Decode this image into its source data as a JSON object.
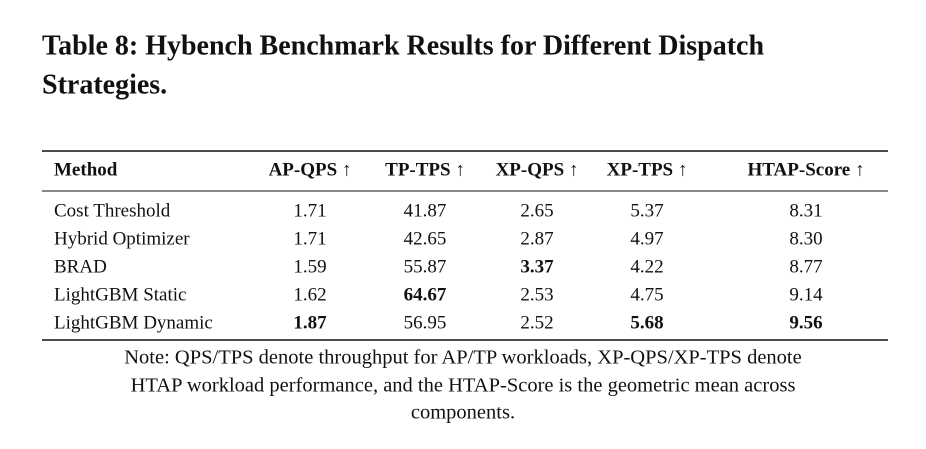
{
  "title": [
    "Table 8: Hybench Benchmark Results for Different Dispatch",
    "Strategies."
  ],
  "table": {
    "header": [
      "Method",
      "AP-QPS ↑",
      "TP-TPS ↑",
      "XP-QPS ↑",
      "XP-TPS ↑",
      "HTAP-Score ↑"
    ],
    "rows": [
      [
        "Cost Threshold",
        "1.71",
        "41.87",
        "2.65",
        "5.37",
        "8.31"
      ],
      [
        "Hybrid Optimizer",
        "1.71",
        "42.65",
        "2.87",
        "4.97",
        "8.30"
      ],
      [
        "BRAD",
        "1.59",
        "55.87",
        "3.37",
        "4.22",
        "8.77"
      ],
      [
        "LightGBM Static",
        "1.62",
        "64.67",
        "2.53",
        "4.75",
        "9.14"
      ],
      [
        "LightGBM Dynamic",
        "1.87",
        "56.95",
        "2.52",
        "5.68",
        "9.56"
      ]
    ]
  },
  "note": [
    "Note: QPS/TPS denote throughput for AP/TP workloads, XP-QPS/XP-TPS denote",
    "HTAP workload performance, and the HTAP-Score is the geometric mean across",
    "components."
  ]
}
